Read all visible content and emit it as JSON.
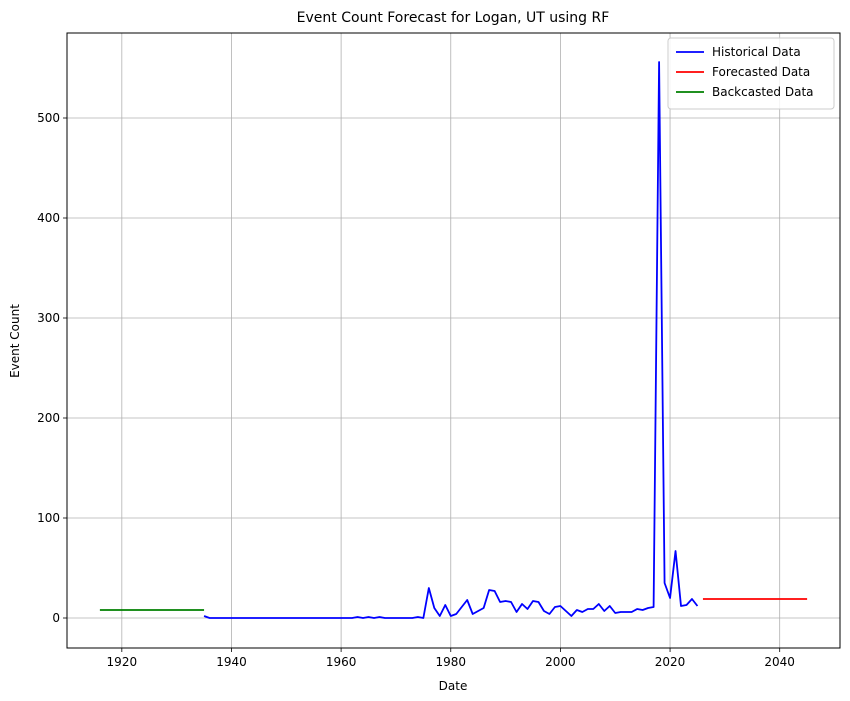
{
  "chart_data": {
    "type": "line",
    "title": "Event Count Forecast for Logan, UT using RF",
    "xlabel": "Date",
    "ylabel": "Event Count",
    "xlim": [
      1910,
      2051
    ],
    "ylim": [
      -30,
      585
    ],
    "x_ticks": [
      1920,
      1940,
      1960,
      1980,
      2000,
      2020,
      2040
    ],
    "y_ticks": [
      0,
      100,
      200,
      300,
      400,
      500
    ],
    "grid": true,
    "legend_position": "top-right",
    "series": [
      {
        "name": "Historical Data",
        "color": "#0000ff",
        "x": [
          1935,
          1936,
          1937,
          1938,
          1939,
          1940,
          1941,
          1942,
          1943,
          1944,
          1945,
          1946,
          1947,
          1948,
          1949,
          1950,
          1951,
          1952,
          1953,
          1954,
          1955,
          1956,
          1957,
          1958,
          1959,
          1960,
          1961,
          1962,
          1963,
          1964,
          1965,
          1966,
          1967,
          1968,
          1969,
          1970,
          1971,
          1972,
          1973,
          1974,
          1975,
          1976,
          1977,
          1978,
          1979,
          1980,
          1981,
          1982,
          1983,
          1984,
          1985,
          1986,
          1987,
          1988,
          1989,
          1990,
          1991,
          1992,
          1993,
          1994,
          1995,
          1996,
          1997,
          1998,
          1999,
          2000,
          2001,
          2002,
          2003,
          2004,
          2005,
          2006,
          2007,
          2008,
          2009,
          2010,
          2011,
          2012,
          2013,
          2014,
          2015,
          2016,
          2017,
          2018,
          2019,
          2020,
          2021,
          2022,
          2023,
          2024,
          2025
        ],
        "y": [
          2,
          0,
          0,
          0,
          0,
          0,
          0,
          0,
          0,
          0,
          0,
          0,
          0,
          0,
          0,
          0,
          0,
          0,
          0,
          0,
          0,
          0,
          0,
          0,
          0,
          0,
          0,
          0,
          1,
          0,
          1,
          0,
          1,
          0,
          0,
          0,
          0,
          0,
          0,
          1,
          0,
          30,
          10,
          2,
          13,
          2,
          4,
          11,
          18,
          4,
          7,
          10,
          28,
          27,
          16,
          17,
          16,
          6,
          14,
          9,
          17,
          16,
          7,
          4,
          11,
          12,
          7,
          2,
          8,
          6,
          9,
          9,
          14,
          7,
          12,
          5,
          6,
          6,
          6,
          9,
          8,
          10,
          11,
          556,
          35,
          20,
          67,
          12,
          13,
          19,
          12
        ]
      },
      {
        "name": "Forecasted Data",
        "color": "#ff0000",
        "x": [
          2026,
          2045
        ],
        "y": [
          19,
          19
        ]
      },
      {
        "name": "Backcasted Data",
        "color": "#008000",
        "x": [
          1916,
          1935
        ],
        "y": [
          8,
          8
        ]
      }
    ]
  }
}
